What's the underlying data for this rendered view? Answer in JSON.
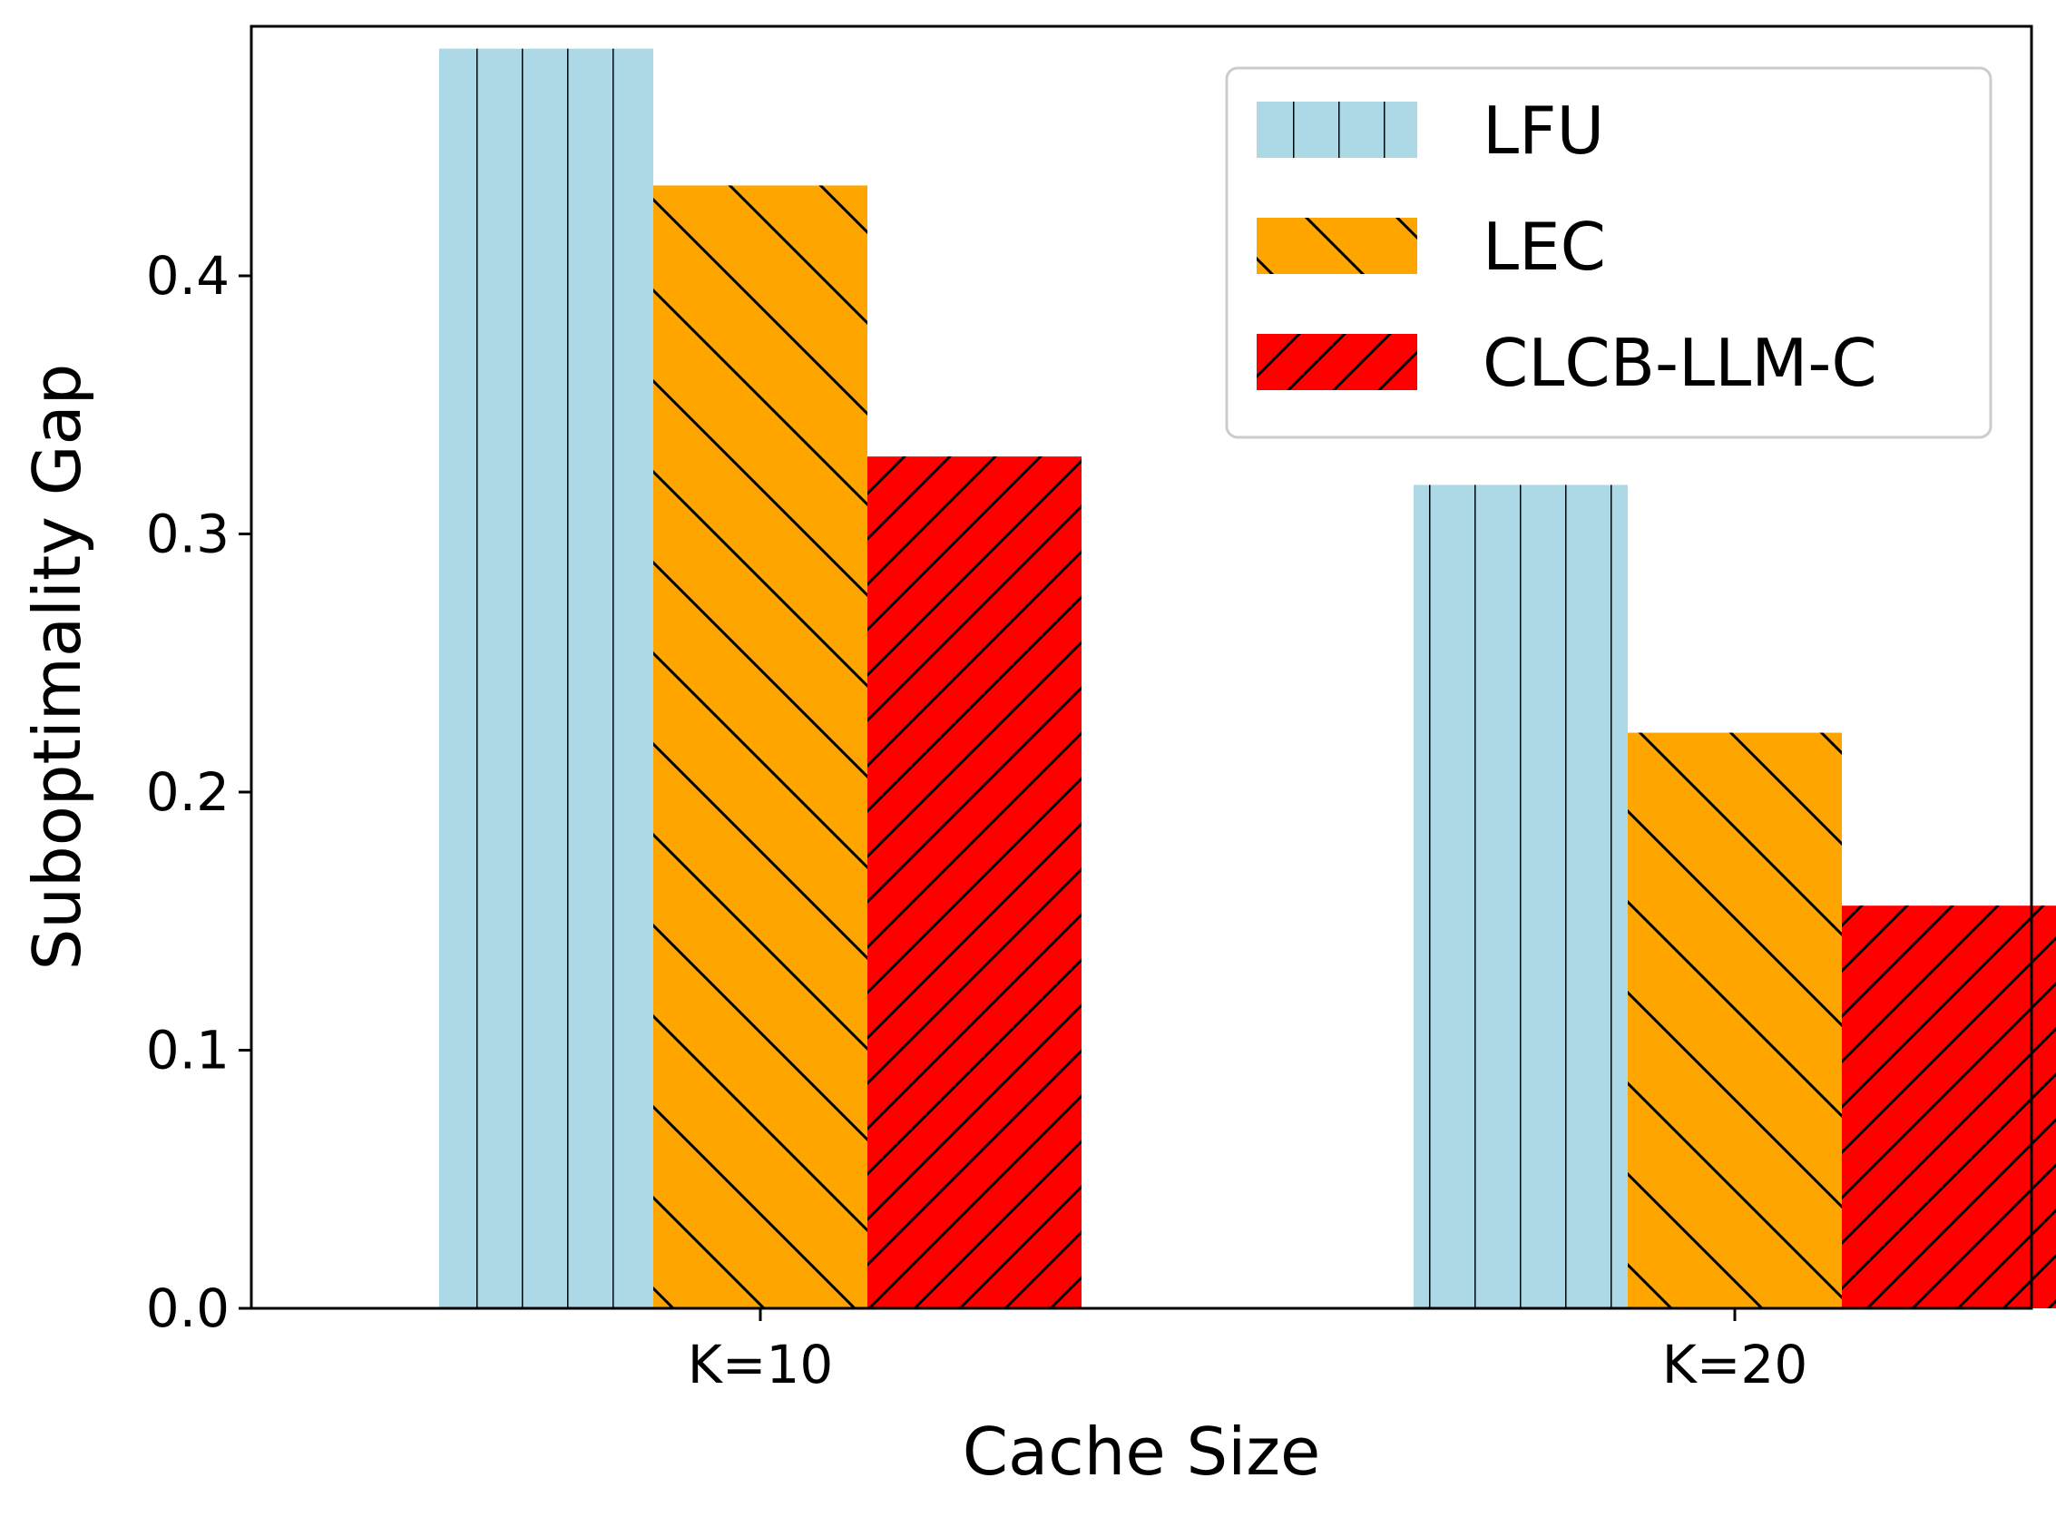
{
  "chart_data": {
    "type": "bar",
    "xlabel": "Cache Size",
    "ylabel": "Suboptimality Gap",
    "categories": [
      "K=10",
      "K=20"
    ],
    "ylim": [
      0,
      0.49
    ],
    "yticks": [
      "0.0",
      "0.1",
      "0.2",
      "0.3",
      "0.4"
    ],
    "grid": false,
    "legend_position": "top-right",
    "series": [
      {
        "name": "LFU",
        "values": [
          0.488,
          0.319
        ],
        "color": "#add8e6",
        "hatch": "vertical"
      },
      {
        "name": "LEC",
        "values": [
          0.435,
          0.223
        ],
        "color": "#ffa500",
        "hatch": "backslash"
      },
      {
        "name": "CLCB-LLM-C",
        "values": [
          0.33,
          0.156
        ],
        "color": "#ff0000",
        "hatch": "slash"
      }
    ]
  }
}
